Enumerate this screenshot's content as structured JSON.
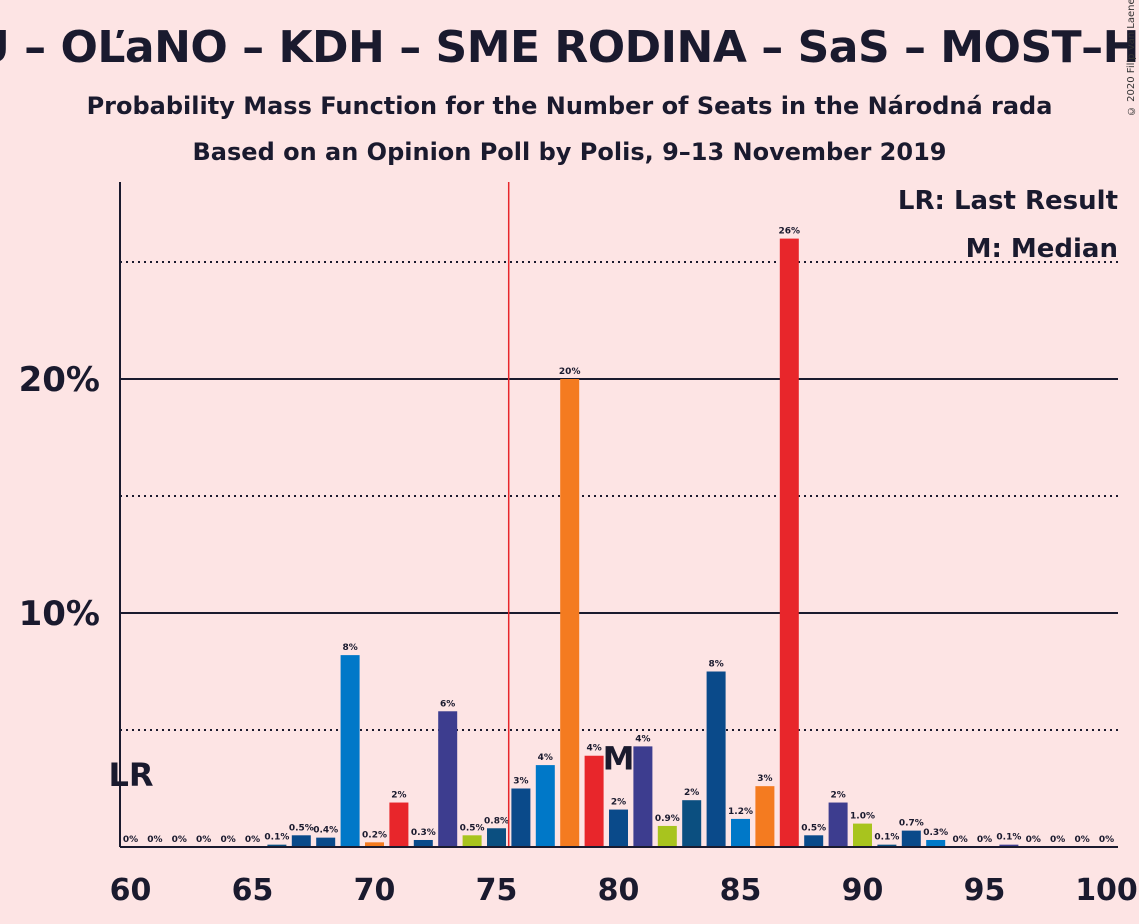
{
  "title": "LU – OĽaNO – KDH – SME RODINA – SaS – MOST–HÍD",
  "subtitle": "Probability Mass Function for the Number of Seats in the Národná rada",
  "subtitle2": "Based on an Opinion Poll by Polis, 9–13 November 2019",
  "copyright": "© 2020 Filip van Laenen",
  "legend": {
    "last_result": "LR: Last Result",
    "median": "M: Median"
  },
  "markers": {
    "last_result": "LR",
    "median": "M"
  },
  "colors": {
    "background": "#fde4e4",
    "majority_line": "#e8262b",
    "palette": [
      "#0a4a8a",
      "#0078c8",
      "#f47b20",
      "#e8262b",
      "#3d3d8f",
      "#a8c41e",
      "#0b4f80"
    ]
  },
  "chart_data": {
    "type": "bar",
    "xlabel": "",
    "ylabel": "",
    "xlim": [
      60,
      100
    ],
    "ylim": [
      0,
      28
    ],
    "x_ticks": [
      60,
      65,
      70,
      75,
      80,
      85,
      90,
      95,
      100
    ],
    "y_ticks": [
      {
        "value": 10,
        "label": "10%"
      },
      {
        "value": 20,
        "label": "20%"
      }
    ],
    "y_dotted": [
      5,
      15,
      25
    ],
    "majority_line": 76,
    "last_result": 60,
    "median": 80,
    "bars": [
      {
        "x": 60,
        "value": 0,
        "label": "0%",
        "color": "#0a4a8a"
      },
      {
        "x": 61,
        "value": 0,
        "label": "0%",
        "color": "#0078c8"
      },
      {
        "x": 62,
        "value": 0,
        "label": "0%",
        "color": "#f47b20"
      },
      {
        "x": 63,
        "value": 0,
        "label": "0%",
        "color": "#e8262b"
      },
      {
        "x": 64,
        "value": 0,
        "label": "0%",
        "color": "#3d3d8f"
      },
      {
        "x": 65,
        "value": 0,
        "label": "0%",
        "color": "#a8c41e"
      },
      {
        "x": 66,
        "value": 0.1,
        "label": "0.1%",
        "color": "#0b4f80"
      },
      {
        "x": 67,
        "value": 0.5,
        "label": "0.5%",
        "color": "#0a4a8a"
      },
      {
        "x": 68,
        "value": 0.4,
        "label": "0.4%",
        "color": "#0a4a8a"
      },
      {
        "x": 69,
        "value": 8.2,
        "label": "8%",
        "color": "#0078c8"
      },
      {
        "x": 70,
        "value": 0.2,
        "label": "0.2%",
        "color": "#f47b20"
      },
      {
        "x": 71,
        "value": 1.9,
        "label": "2%",
        "color": "#e8262b"
      },
      {
        "x": 72,
        "value": 0.3,
        "label": "0.3%",
        "color": "#0a4a8a"
      },
      {
        "x": 73,
        "value": 5.8,
        "label": "6%",
        "color": "#3d3d8f"
      },
      {
        "x": 74,
        "value": 0.5,
        "label": "0.5%",
        "color": "#a8c41e"
      },
      {
        "x": 75,
        "value": 0.8,
        "label": "0.8%",
        "color": "#0b4f80"
      },
      {
        "x": 76,
        "value": 2.5,
        "label": "3%",
        "color": "#0a4a8a"
      },
      {
        "x": 77,
        "value": 3.5,
        "label": "4%",
        "color": "#0078c8"
      },
      {
        "x": 78,
        "value": 20.0,
        "label": "20%",
        "color": "#f47b20"
      },
      {
        "x": 79,
        "value": 3.9,
        "label": "4%",
        "color": "#e8262b"
      },
      {
        "x": 80,
        "value": 1.6,
        "label": "2%",
        "color": "#0a4a8a"
      },
      {
        "x": 81,
        "value": 4.3,
        "label": "4%",
        "color": "#3d3d8f"
      },
      {
        "x": 82,
        "value": 0.9,
        "label": "0.9%",
        "color": "#a8c41e"
      },
      {
        "x": 83,
        "value": 2.0,
        "label": "2%",
        "color": "#0b4f80"
      },
      {
        "x": 84,
        "value": 7.5,
        "label": "8%",
        "color": "#0a4a8a"
      },
      {
        "x": 85,
        "value": 1.2,
        "label": "1.2%",
        "color": "#0078c8"
      },
      {
        "x": 86,
        "value": 2.6,
        "label": "3%",
        "color": "#f47b20"
      },
      {
        "x": 87,
        "value": 26.0,
        "label": "26%",
        "color": "#e8262b"
      },
      {
        "x": 88,
        "value": 0.5,
        "label": "0.5%",
        "color": "#0a4a8a"
      },
      {
        "x": 89,
        "value": 1.9,
        "label": "2%",
        "color": "#3d3d8f"
      },
      {
        "x": 90,
        "value": 1.0,
        "label": "1.0%",
        "color": "#a8c41e"
      },
      {
        "x": 91,
        "value": 0.1,
        "label": "0.1%",
        "color": "#0b4f80"
      },
      {
        "x": 92,
        "value": 0.7,
        "label": "0.7%",
        "color": "#0a4a8a"
      },
      {
        "x": 93,
        "value": 0.3,
        "label": "0.3%",
        "color": "#0078c8"
      },
      {
        "x": 94,
        "value": 0,
        "label": "0%",
        "color": "#f47b20"
      },
      {
        "x": 95,
        "value": 0,
        "label": "0%",
        "color": "#e8262b"
      },
      {
        "x": 96,
        "value": 0.1,
        "label": "0.1%",
        "color": "#3d3d8f"
      },
      {
        "x": 97,
        "value": 0,
        "label": "0%",
        "color": "#a8c41e"
      },
      {
        "x": 98,
        "value": 0,
        "label": "0%",
        "color": "#0b4f80"
      },
      {
        "x": 99,
        "value": 0,
        "label": "0%",
        "color": "#0a4a8a"
      },
      {
        "x": 100,
        "value": 0,
        "label": "0%",
        "color": "#0078c8"
      }
    ]
  }
}
